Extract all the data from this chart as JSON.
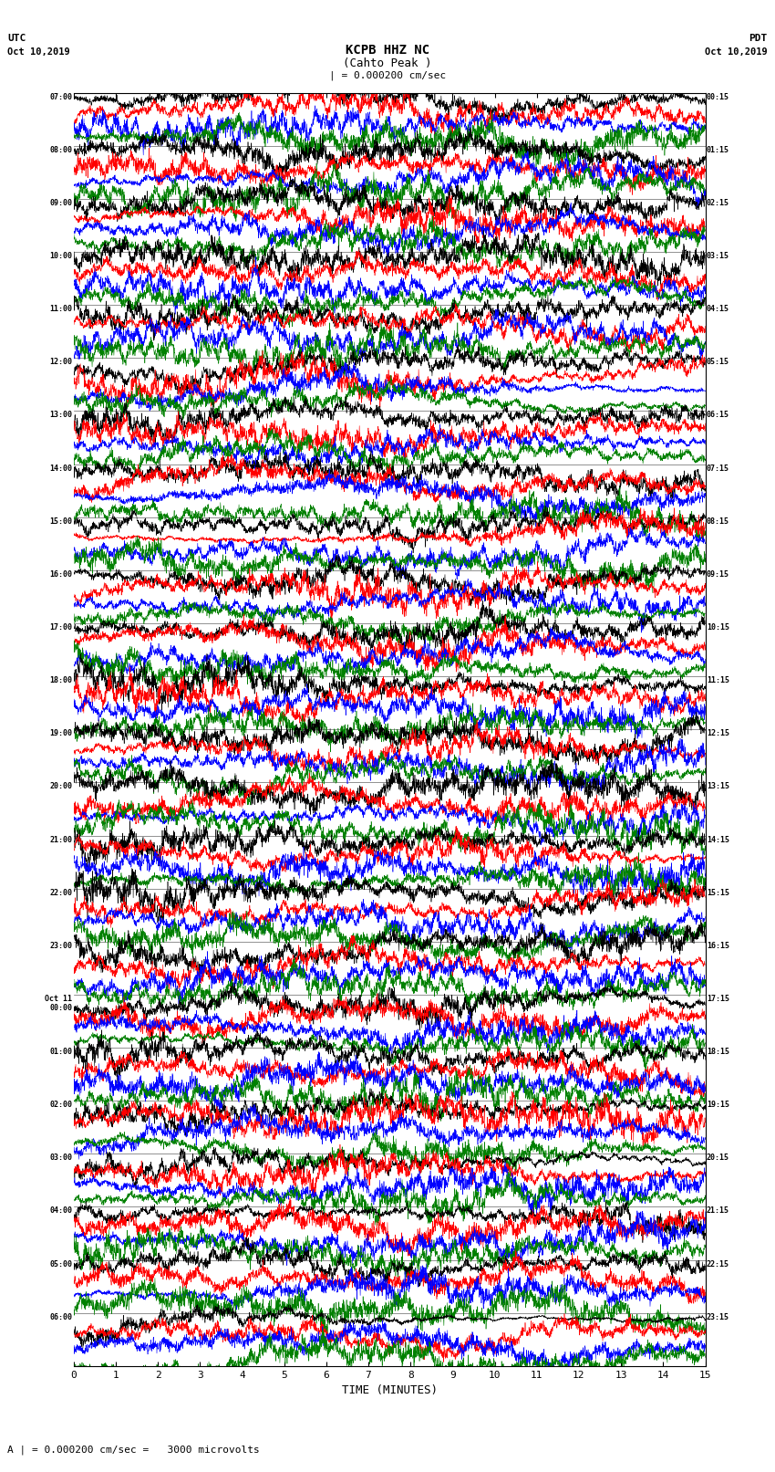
{
  "title_line1": "KCPB HHZ NC",
  "title_line2": "(Cahto Peak )",
  "scale_label": "| = 0.000200 cm/sec",
  "bottom_label": "A | = 0.000200 cm/sec =   3000 microvolts",
  "xlabel": "TIME (MINUTES)",
  "left_times": [
    "07:00",
    "08:00",
    "09:00",
    "10:00",
    "11:00",
    "12:00",
    "13:00",
    "14:00",
    "15:00",
    "16:00",
    "17:00",
    "18:00",
    "19:00",
    "20:00",
    "21:00",
    "22:00",
    "23:00",
    "Oct 11\n00:00",
    "01:00",
    "02:00",
    "03:00",
    "04:00",
    "05:00",
    "06:00"
  ],
  "right_times": [
    "00:15",
    "01:15",
    "02:15",
    "03:15",
    "04:15",
    "05:15",
    "06:15",
    "07:15",
    "08:15",
    "09:15",
    "10:15",
    "11:15",
    "12:15",
    "13:15",
    "14:15",
    "15:15",
    "16:15",
    "17:15",
    "18:15",
    "19:15",
    "20:15",
    "21:15",
    "22:15",
    "23:15"
  ],
  "n_rows": 24,
  "n_traces_per_row": 4,
  "colors": [
    "black",
    "red",
    "blue",
    "green"
  ],
  "time_minutes": 15,
  "background_color": "white",
  "fig_width": 8.5,
  "fig_height": 16.13,
  "dpi": 100,
  "noise_seed": 42,
  "N_points": 3000
}
